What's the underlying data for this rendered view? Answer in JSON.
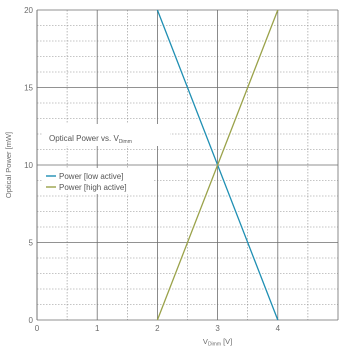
{
  "chart_data": {
    "type": "line",
    "title": "",
    "annotation": {
      "text": "Optical Power vs. V",
      "subscript": "Dimm"
    },
    "xlabel": {
      "text": "V",
      "subscript": "Dimm",
      "suffix": " [V]"
    },
    "ylabel": "Optical Power [mW]",
    "xlim": [
      0,
      5
    ],
    "ylim": [
      0,
      20
    ],
    "x_ticks": [
      0,
      1,
      2,
      3,
      4
    ],
    "y_ticks": [
      0,
      5,
      10,
      15,
      20
    ],
    "x_minor_step": 0.5,
    "y_minor_step": 1,
    "grid": true,
    "legend_position": "center-left",
    "series": [
      {
        "name": "Power [low active]",
        "color": "#1f8fb3",
        "x": [
          2,
          4
        ],
        "y": [
          20,
          0
        ]
      },
      {
        "name": "Power [high active]",
        "color": "#9aa24a",
        "x": [
          2,
          4
        ],
        "y": [
          0,
          20
        ]
      }
    ]
  }
}
